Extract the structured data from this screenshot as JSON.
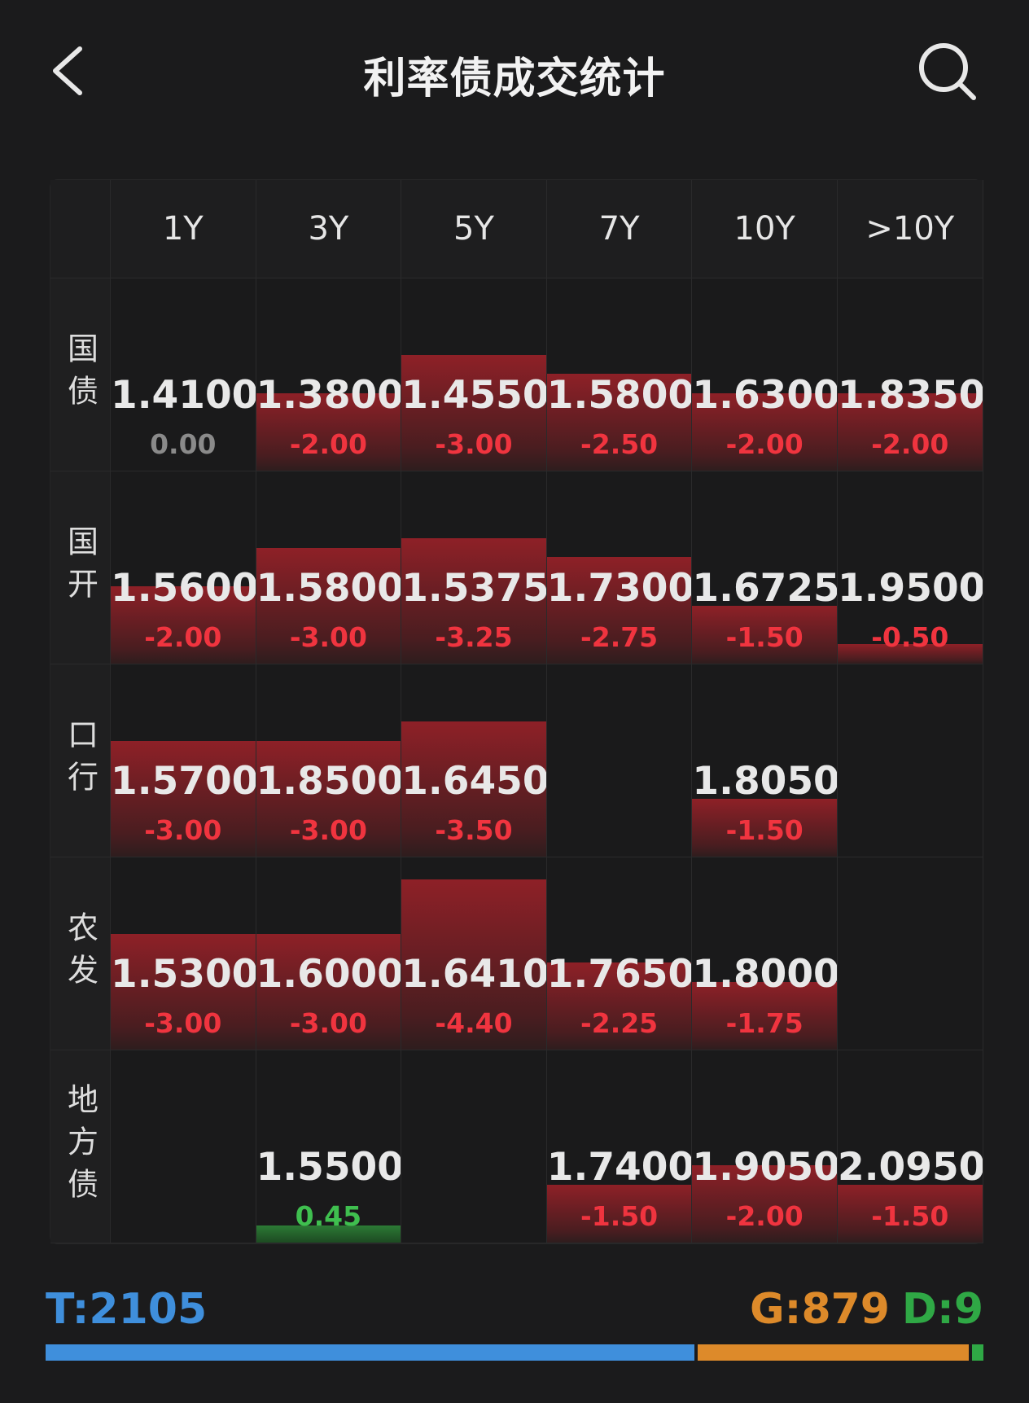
{
  "header": {
    "title": "利率债成交统计",
    "back_icon": "chevron-left-icon",
    "search_icon": "search-icon"
  },
  "columns": [
    "1Y",
    "3Y",
    "5Y",
    "7Y",
    "10Y",
    ">10Y"
  ],
  "rows": [
    {
      "label": "国债",
      "cells": [
        {
          "value": "1.4100",
          "change": "0.00",
          "delta": 0
        },
        {
          "value": "1.3800",
          "change": "-2.00",
          "delta": -2.0
        },
        {
          "value": "1.4550",
          "change": "-3.00",
          "delta": -3.0
        },
        {
          "value": "1.5800",
          "change": "-2.50",
          "delta": -2.5
        },
        {
          "value": "1.6300",
          "change": "-2.00",
          "delta": -2.0
        },
        {
          "value": "1.8350",
          "change": "-2.00",
          "delta": -2.0
        }
      ]
    },
    {
      "label": "国开",
      "cells": [
        {
          "value": "1.5600",
          "change": "-2.00",
          "delta": -2.0
        },
        {
          "value": "1.5800",
          "change": "-3.00",
          "delta": -3.0
        },
        {
          "value": "1.5375",
          "change": "-3.25",
          "delta": -3.25
        },
        {
          "value": "1.7300",
          "change": "-2.75",
          "delta": -2.75
        },
        {
          "value": "1.6725",
          "change": "-1.50",
          "delta": -1.5
        },
        {
          "value": "1.9500",
          "change": "-0.50",
          "delta": -0.5
        }
      ]
    },
    {
      "label": "口行",
      "cells": [
        {
          "value": "1.5700",
          "change": "-3.00",
          "delta": -3.0
        },
        {
          "value": "1.8500",
          "change": "-3.00",
          "delta": -3.0
        },
        {
          "value": "1.6450",
          "change": "-3.50",
          "delta": -3.5
        },
        null,
        {
          "value": "1.8050",
          "change": "-1.50",
          "delta": -1.5
        },
        null
      ]
    },
    {
      "label": "农发",
      "cells": [
        {
          "value": "1.5300",
          "change": "-3.00",
          "delta": -3.0
        },
        {
          "value": "1.6000",
          "change": "-3.00",
          "delta": -3.0
        },
        {
          "value": "1.6410",
          "change": "-4.40",
          "delta": -4.4
        },
        {
          "value": "1.7650",
          "change": "-2.25",
          "delta": -2.25
        },
        {
          "value": "1.8000",
          "change": "-1.75",
          "delta": -1.75
        },
        null
      ]
    },
    {
      "label": "地方债",
      "cells": [
        null,
        {
          "value": "1.5500",
          "change": "0.45",
          "delta": 0.45
        },
        null,
        {
          "value": "1.7400",
          "change": "-1.50",
          "delta": -1.5
        },
        {
          "value": "1.9050",
          "change": "-2.00",
          "delta": -2.0
        },
        {
          "value": "2.0950",
          "change": "-1.50",
          "delta": -1.5
        }
      ]
    }
  ],
  "colors": {
    "negative": "#f0343f",
    "positive": "#3fbf4f",
    "neutral": "#8a8a8a",
    "t": "#3f8fdc",
    "g": "#dd8a2a",
    "d": "#2fa845"
  },
  "footer": {
    "t_label": "T:2105",
    "g_label": "G:879",
    "d_label": "D:9",
    "t": 2105,
    "g": 879,
    "d": 9
  }
}
